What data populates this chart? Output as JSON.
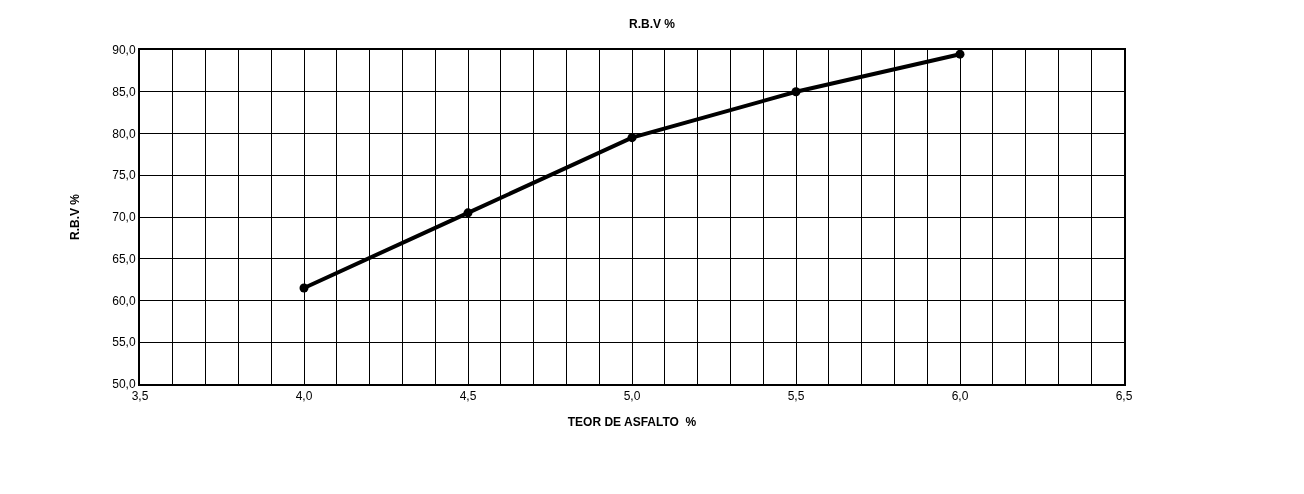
{
  "chart_data": {
    "type": "line",
    "title": "R.B.V %",
    "xlabel": "TEOR DE ASFALTO  %",
    "ylabel": "R.B.V %",
    "x": [
      4.0,
      4.5,
      5.0,
      5.5,
      6.0
    ],
    "series": [
      {
        "color": "#000000",
        "values": [
          61.5,
          70.5,
          79.5,
          85.0,
          89.5
        ]
      }
    ],
    "xlim": [
      3.5,
      6.5
    ],
    "xticks": [
      "3,5",
      {
        "value": 3.6,
        "label": null
      },
      {
        "value": 3.7,
        "label": null
      },
      {
        "value": 3.8,
        "label": null
      },
      {
        "value": 3.9,
        "label": null
      },
      {
        "value": 4.0,
        "label": "4,0"
      },
      {
        "value": 4.1,
        "label": null
      },
      {
        "value": 4.2,
        "label": null
      },
      {
        "value": 4.3,
        "label": null
      },
      {
        "value": 4.4,
        "label": null
      },
      {
        "value": 4.5,
        "label": "4,5"
      },
      {
        "value": 4.6,
        "label": null
      },
      {
        "value": 4.7,
        "label": null
      },
      {
        "value": 4.8,
        "label": null
      },
      {
        "value": 4.9,
        "label": null
      },
      {
        "value": 5.0,
        "label": "5,0"
      },
      {
        "value": 5.1,
        "label": null
      },
      {
        "value": 5.2,
        "label": null
      },
      {
        "value": 5.3,
        "label": null
      },
      {
        "value": 5.4,
        "label": null
      },
      {
        "value": 5.5,
        "label": "5,5"
      },
      {
        "value": 5.6,
        "label": null
      },
      {
        "value": 5.7,
        "label": null
      },
      {
        "value": 5.8,
        "label": null
      },
      {
        "value": 5.9,
        "label": null
      },
      {
        "value": 6.0,
        "label": "6,0"
      },
      {
        "value": 6.1,
        "label": null
      },
      {
        "value": 6.2,
        "label": null
      },
      {
        "value": 6.3,
        "label": null
      },
      {
        "value": 6.4,
        "label": null
      },
      {
        "value": 6.5,
        "label": "6,5"
      }
    ],
    "ylim": [
      50,
      90
    ],
    "yticks": [
      {
        "value": 50,
        "label": "50,0"
      },
      {
        "value": 55,
        "label": "55,0"
      },
      {
        "value": 60,
        "label": "60,0"
      },
      {
        "value": 65,
        "label": "65,0"
      },
      {
        "value": 70,
        "label": "70,0"
      },
      {
        "value": 75,
        "label": "75,0"
      },
      {
        "value": 80,
        "label": "80,0"
      },
      {
        "value": 85,
        "label": "85,0"
      },
      {
        "value": 90,
        "label": "90,0"
      }
    ],
    "grid": true,
    "marker": "circle",
    "line_style": "solid"
  }
}
